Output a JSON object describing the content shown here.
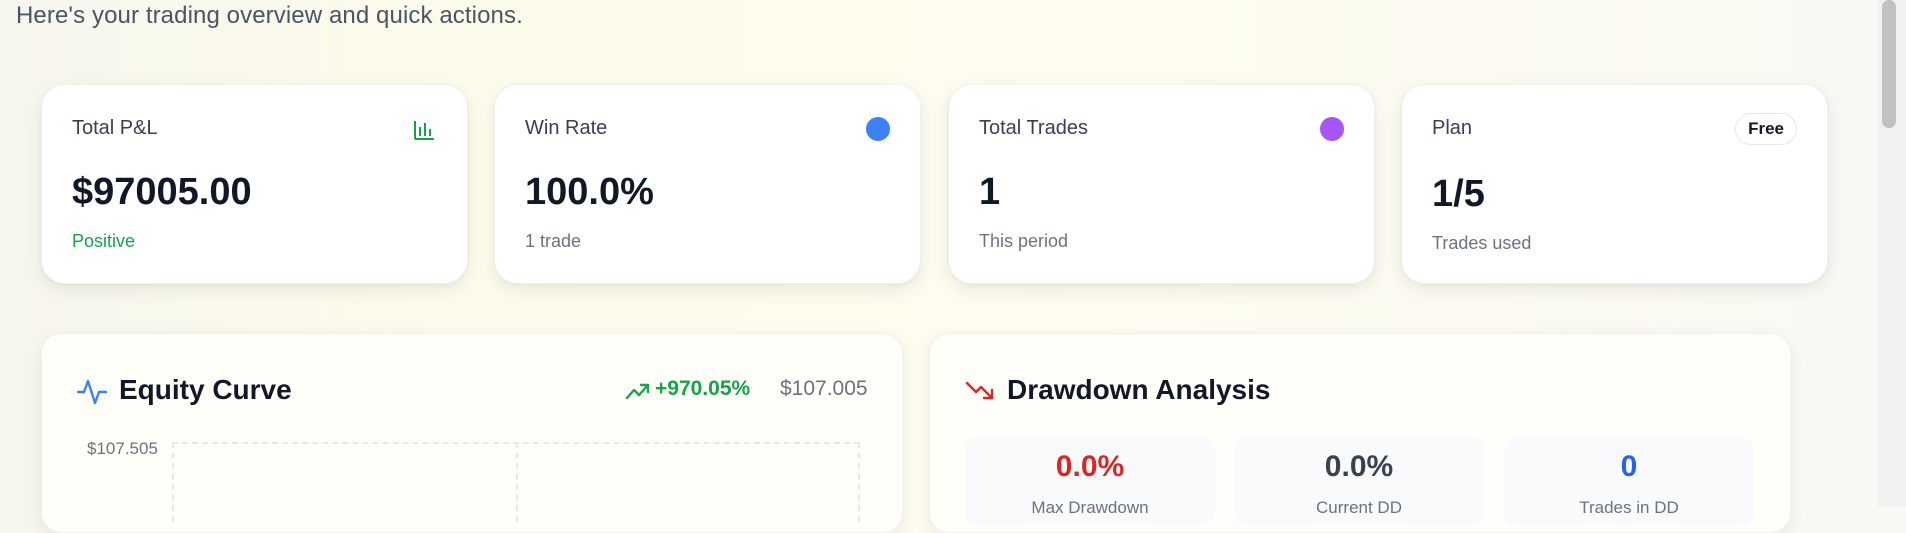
{
  "header": {
    "subtitle": "Here's your trading overview and quick actions."
  },
  "stats": {
    "pnl": {
      "label": "Total P&L",
      "value": "$97005.00",
      "sub": "Positive",
      "icon": "bar-chart-icon"
    },
    "win_rate": {
      "label": "Win Rate",
      "value": "100.0%",
      "sub": "1 trade",
      "dot_color": "#3b82f6"
    },
    "total_trades": {
      "label": "Total Trades",
      "value": "1",
      "sub": "This period",
      "dot_color": "#a855f7"
    },
    "plan": {
      "label": "Plan",
      "badge": "Free",
      "value": "1/5",
      "sub": "Trades used"
    }
  },
  "equity": {
    "title": "Equity Curve",
    "icon": "activity-icon",
    "change_pct": "+970.05%",
    "change_value": "$107.005",
    "y_tick_top": "$107.505"
  },
  "drawdown": {
    "title": "Drawdown Analysis",
    "icon": "trending-down-icon",
    "metrics": [
      {
        "value": "0.0%",
        "label": "Max Drawdown",
        "color": "#dc2626"
      },
      {
        "value": "0.0%",
        "label": "Current DD",
        "color": "#374151"
      },
      {
        "value": "0",
        "label": "Trades in DD",
        "color": "#2563eb"
      }
    ]
  },
  "colors": {
    "positive": "#16a34a",
    "negative": "#dc2626",
    "accent_blue": "#3b82f6",
    "accent_purple": "#a855f7"
  }
}
